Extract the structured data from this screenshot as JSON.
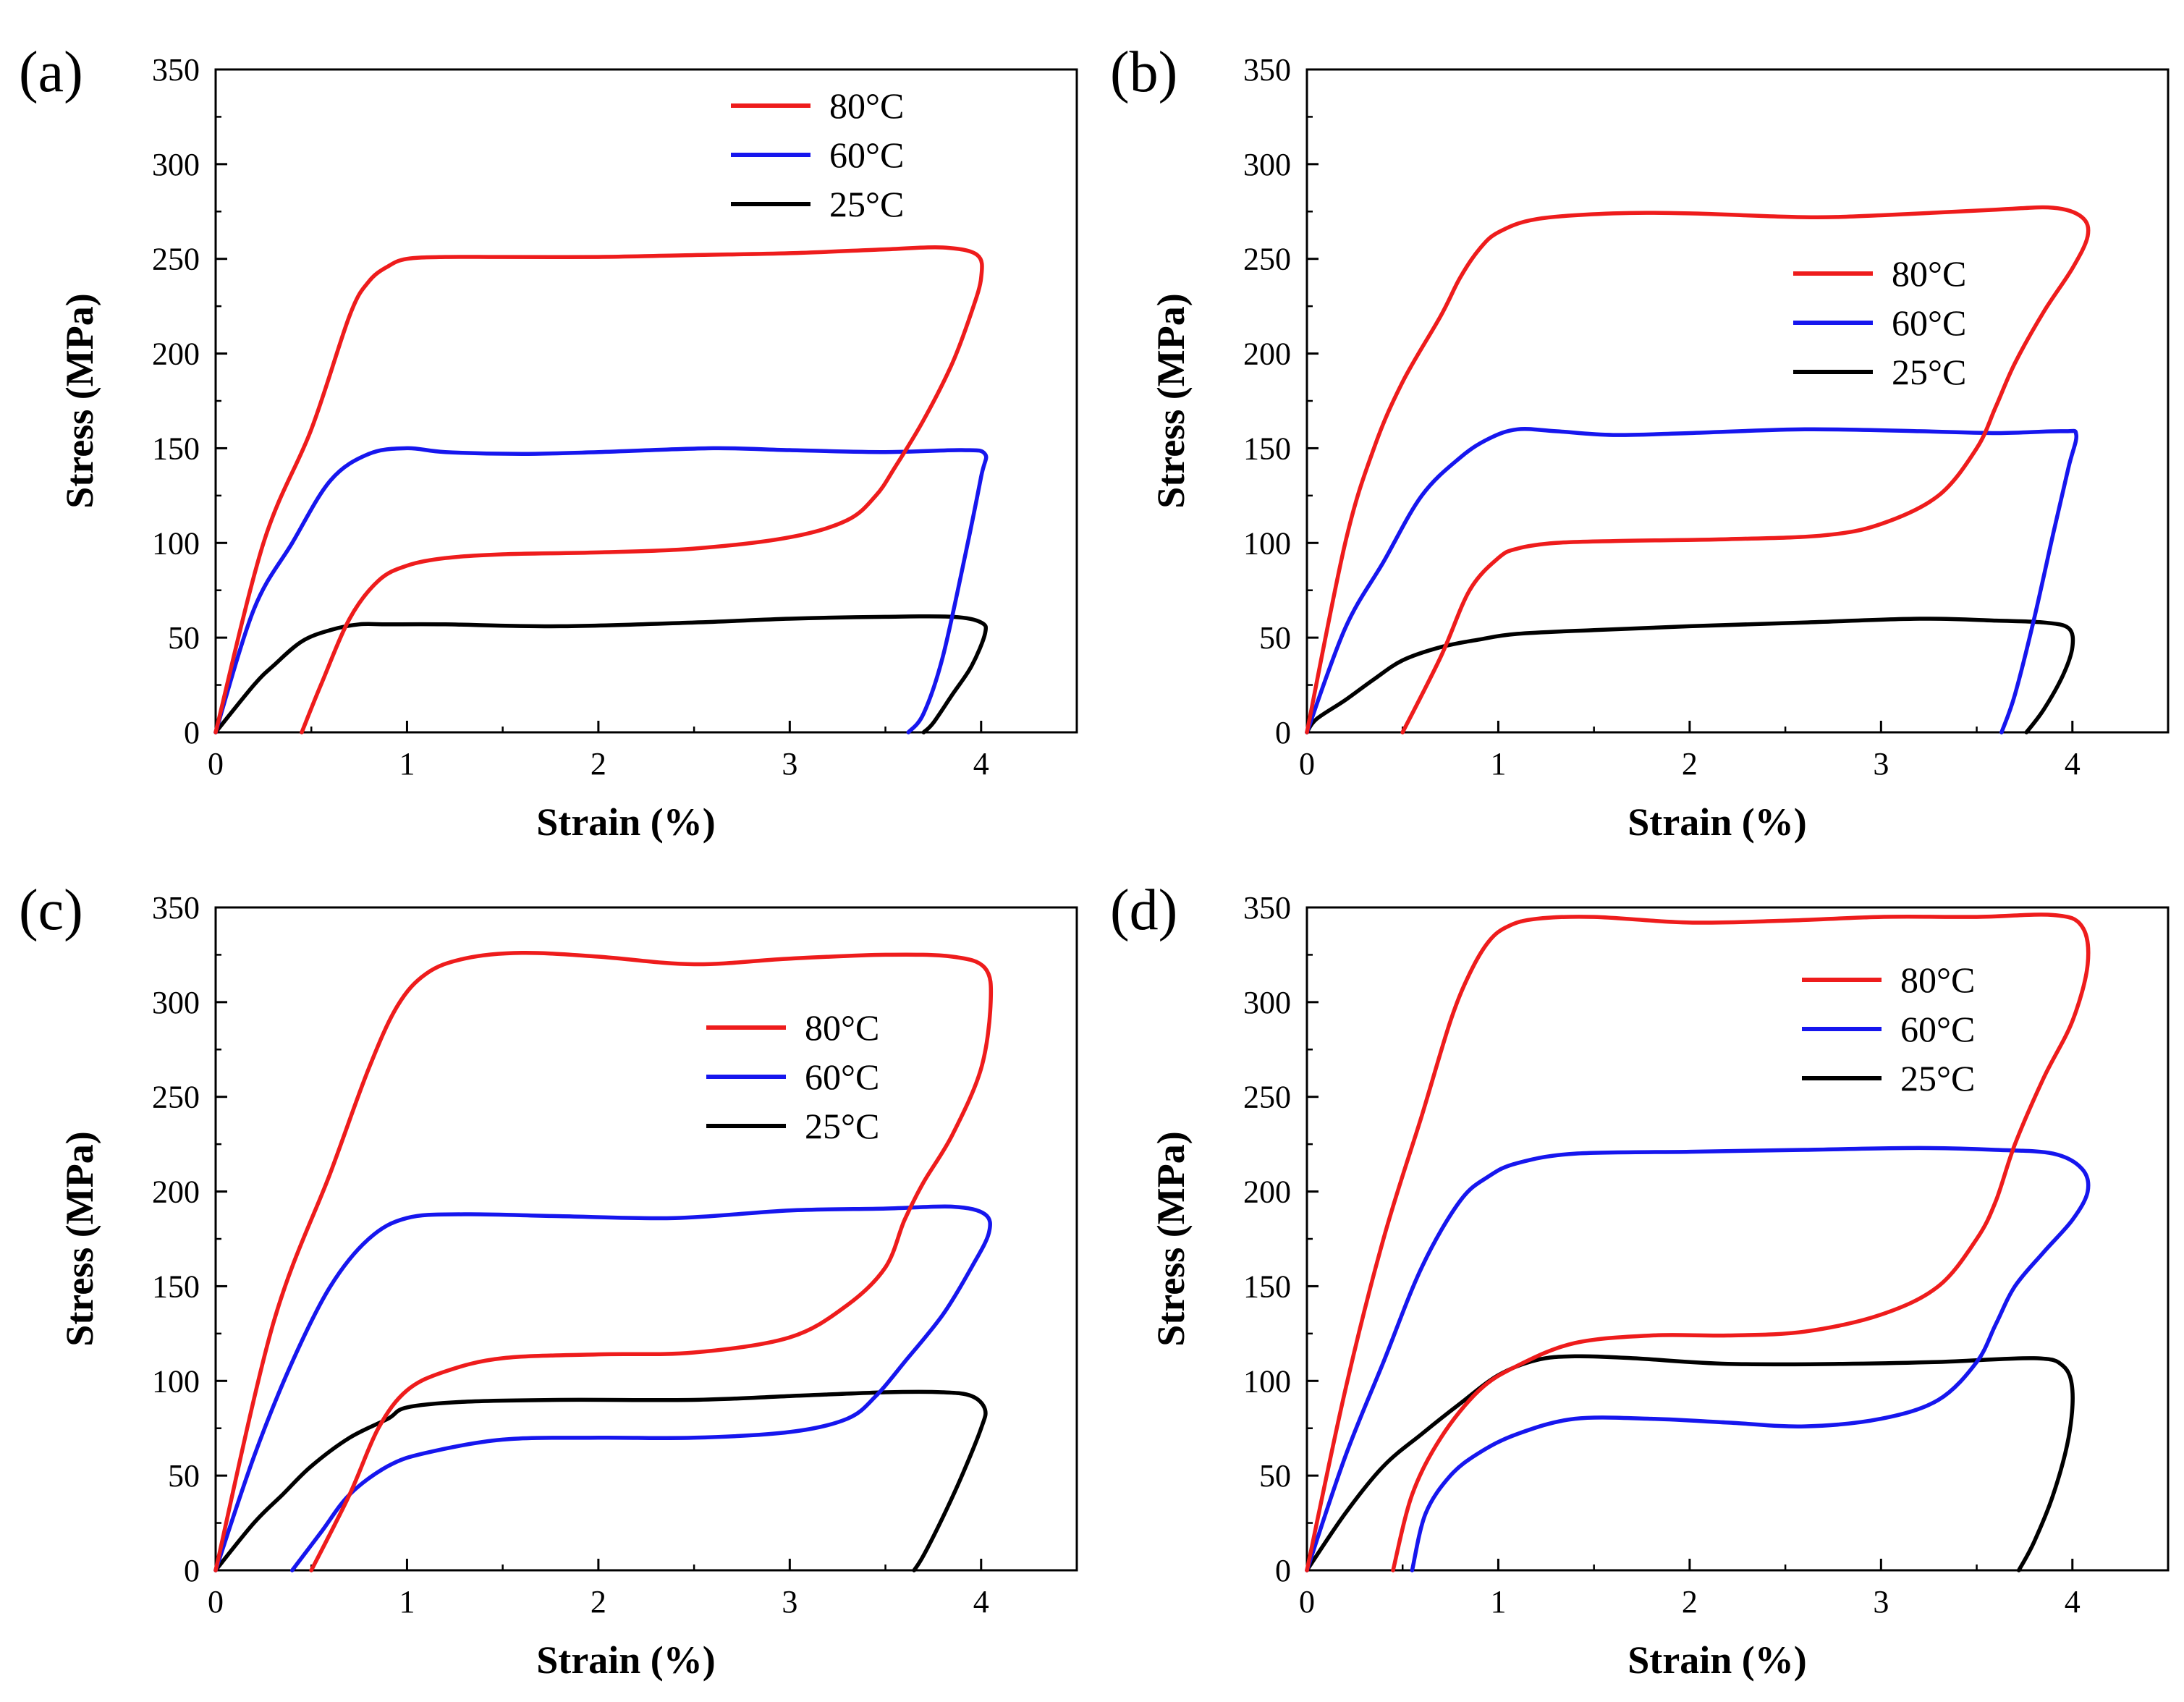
{
  "figure": {
    "colors": {
      "80C": "#ee1c1c",
      "60C": "#1616ee",
      "25C": "#000000"
    }
  },
  "chart_data": [
    {
      "panel": "(a)",
      "type": "line",
      "xlabel": "Strain (%)",
      "ylabel": "Stress (MPa)",
      "xlim": [
        0,
        4.5
      ],
      "ylim": [
        0,
        350
      ],
      "xticks": [
        "0",
        "1",
        "2",
        "3",
        "4"
      ],
      "yticks": [
        "0",
        "50",
        "100",
        "150",
        "200",
        "250",
        "300",
        "350"
      ],
      "legend_position": "top-right",
      "series": [
        {
          "name": "80°C",
          "color": "80C",
          "x": [
            0,
            0.25,
            0.5,
            0.7,
            0.8,
            0.9,
            1.0,
            1.2,
            1.5,
            2,
            2.5,
            3,
            3.5,
            3.8,
            3.98,
            4.0,
            3.95,
            3.85,
            3.7,
            3.55,
            3.45,
            3.3,
            3.0,
            2.5,
            2.0,
            1.5,
            1.2,
            1.0,
            0.85,
            0.7,
            0.55,
            0.45
          ],
          "y": [
            0,
            100,
            160,
            220,
            238,
            246,
            250,
            251,
            251,
            251,
            252,
            253,
            255,
            256,
            252,
            240,
            222,
            195,
            165,
            140,
            125,
            112,
            103,
            97,
            95,
            94,
            92,
            88,
            80,
            60,
            25,
            0
          ]
        },
        {
          "name": "60°C",
          "color": "60C",
          "x": [
            0,
            0.2,
            0.4,
            0.6,
            0.8,
            1.0,
            1.2,
            1.6,
            2.0,
            2.6,
            3.0,
            3.5,
            3.9,
            4.02,
            4.0,
            3.92,
            3.8,
            3.7,
            3.62
          ],
          "y": [
            0,
            65,
            100,
            133,
            147,
            150,
            148,
            147,
            148,
            150,
            149,
            148,
            149,
            147,
            135,
            95,
            40,
            10,
            0
          ]
        },
        {
          "name": "25°C",
          "color": "25C",
          "x": [
            0,
            0.2,
            0.3,
            0.45,
            0.6,
            0.75,
            0.9,
            1.2,
            1.8,
            2.5,
            3.0,
            3.5,
            3.85,
            4.0,
            4.02,
            3.95,
            3.85,
            3.75,
            3.7
          ],
          "y": [
            0,
            25,
            35,
            48,
            54,
            57,
            57,
            57,
            56,
            58,
            60,
            61,
            61,
            58,
            52,
            35,
            20,
            5,
            0
          ]
        }
      ]
    },
    {
      "panel": "(b)",
      "type": "line",
      "xlabel": "Strain (%)",
      "ylabel": "Stress (MPa)",
      "xlim": [
        0,
        4.5
      ],
      "ylim": [
        0,
        350
      ],
      "xticks": [
        "0",
        "1",
        "2",
        "3",
        "4"
      ],
      "yticks": [
        "0",
        "50",
        "100",
        "150",
        "200",
        "250",
        "300",
        "350"
      ],
      "legend_position": "upper-right",
      "series": [
        {
          "name": "80°C",
          "color": "80C",
          "x": [
            0,
            0.2,
            0.35,
            0.5,
            0.7,
            0.8,
            0.9,
            1.0,
            1.2,
            1.6,
            2.0,
            2.6,
            3.0,
            3.6,
            3.9,
            4.05,
            4.08,
            4.0,
            3.85,
            3.7,
            3.6,
            3.5,
            3.3,
            3.0,
            2.7,
            2.2,
            1.6,
            1.3,
            1.1,
            1.0,
            0.85,
            0.7,
            0.5
          ],
          "y": [
            0,
            100,
            150,
            185,
            220,
            240,
            255,
            264,
            271,
            274,
            274,
            272,
            273,
            276,
            277,
            272,
            262,
            245,
            222,
            195,
            172,
            150,
            125,
            110,
            104,
            102,
            101,
            100,
            97,
            92,
            75,
            40,
            0
          ]
        },
        {
          "name": "60°C",
          "color": "60C",
          "x": [
            0,
            0.2,
            0.4,
            0.6,
            0.8,
            0.95,
            1.1,
            1.3,
            1.6,
            2.0,
            2.6,
            3.2,
            3.6,
            3.95,
            4.02,
            3.98,
            3.9,
            3.8,
            3.7,
            3.63
          ],
          "y": [
            0,
            55,
            90,
            125,
            145,
            155,
            160,
            159,
            157,
            158,
            160,
            159,
            158,
            159,
            157,
            140,
            105,
            60,
            20,
            0
          ]
        },
        {
          "name": "25°C",
          "color": "25C",
          "x": [
            0,
            0.05,
            0.2,
            0.35,
            0.5,
            0.7,
            0.9,
            1.1,
            1.5,
            2.0,
            2.6,
            3.2,
            3.6,
            3.85,
            3.98,
            4.0,
            3.95,
            3.85,
            3.76
          ],
          "y": [
            0,
            7,
            17,
            28,
            38,
            45,
            49,
            52,
            54,
            56,
            58,
            60,
            59,
            58,
            55,
            45,
            30,
            12,
            0
          ]
        }
      ]
    },
    {
      "panel": "(c)",
      "type": "line",
      "xlabel": "Strain (%)",
      "ylabel": "Stress (MPa)",
      "xlim": [
        0,
        4.5
      ],
      "ylim": [
        0,
        350
      ],
      "xticks": [
        "0",
        "1",
        "2",
        "3",
        "4"
      ],
      "yticks": [
        "0",
        "50",
        "100",
        "150",
        "200",
        "250",
        "300",
        "350"
      ],
      "legend_position": "upper-right",
      "series": [
        {
          "name": "80°C",
          "color": "80C",
          "x": [
            0,
            0.3,
            0.6,
            0.8,
            0.95,
            1.1,
            1.3,
            1.6,
            2.0,
            2.5,
            3.0,
            3.5,
            3.85,
            4.02,
            4.05,
            4.0,
            3.85,
            3.7,
            3.6,
            3.5,
            3.3,
            3.0,
            2.5,
            2.0,
            1.5,
            1.2,
            1.0,
            0.85,
            0.7,
            0.5
          ],
          "y": [
            0,
            130,
            210,
            265,
            298,
            315,
            323,
            326,
            324,
            320,
            323,
            325,
            324,
            318,
            300,
            265,
            230,
            205,
            185,
            160,
            140,
            123,
            115,
            114,
            112,
            105,
            95,
            75,
            40,
            0
          ]
        },
        {
          "name": "60°C",
          "color": "60C",
          "x": [
            0,
            0.2,
            0.4,
            0.6,
            0.8,
            1.0,
            1.3,
            1.8,
            2.4,
            3.0,
            3.5,
            3.85,
            4.02,
            4.04,
            3.95,
            3.8,
            3.6,
            3.45,
            3.3,
            3.0,
            2.5,
            2.0,
            1.5,
            1.1,
            0.9,
            0.7,
            0.55,
            0.4
          ],
          "y": [
            0,
            60,
            110,
            150,
            175,
            186,
            188,
            187,
            186,
            190,
            191,
            192,
            188,
            178,
            160,
            135,
            110,
            92,
            80,
            73,
            70,
            70,
            69,
            62,
            55,
            40,
            20,
            0
          ]
        },
        {
          "name": "25°C",
          "color": "25C",
          "x": [
            0,
            0.2,
            0.35,
            0.5,
            0.7,
            0.9,
            1.0,
            1.3,
            1.8,
            2.5,
            3.0,
            3.5,
            3.8,
            3.95,
            4.02,
            4.0,
            3.9,
            3.8,
            3.7,
            3.65
          ],
          "y": [
            0,
            25,
            40,
            55,
            70,
            80,
            86,
            89,
            90,
            90,
            92,
            94,
            94,
            92,
            85,
            75,
            50,
            28,
            8,
            0
          ]
        }
      ]
    },
    {
      "panel": "(d)",
      "type": "line",
      "xlabel": "Strain (%)",
      "ylabel": "Stress (MPa)",
      "xlim": [
        0,
        4.5
      ],
      "ylim": [
        0,
        350
      ],
      "xticks": [
        "0",
        "1",
        "2",
        "3",
        "4"
      ],
      "yticks": [
        "0",
        "50",
        "100",
        "150",
        "200",
        "250",
        "300",
        "350"
      ],
      "legend_position": "upper-right",
      "series": [
        {
          "name": "80°C",
          "color": "80C",
          "x": [
            0,
            0.2,
            0.4,
            0.6,
            0.75,
            0.85,
            0.95,
            1.05,
            1.2,
            1.5,
            2.0,
            2.5,
            3.0,
            3.5,
            3.9,
            4.05,
            4.08,
            4.0,
            3.85,
            3.7,
            3.6,
            3.5,
            3.3,
            3.0,
            2.6,
            2.2,
            1.8,
            1.4,
            1.1,
            0.9,
            0.7,
            0.55,
            0.45
          ],
          "y": [
            0,
            95,
            175,
            240,
            290,
            315,
            332,
            340,
            344,
            345,
            342,
            343,
            345,
            345,
            346,
            340,
            320,
            290,
            260,
            225,
            195,
            175,
            150,
            135,
            126,
            124,
            124,
            120,
            108,
            95,
            70,
            40,
            0
          ]
        },
        {
          "name": "60°C",
          "color": "60C",
          "x": [
            0,
            0.2,
            0.4,
            0.6,
            0.8,
            0.95,
            1.1,
            1.4,
            2.0,
            2.6,
            3.2,
            3.6,
            3.9,
            4.05,
            4.08,
            4.0,
            3.85,
            3.7,
            3.6,
            3.5,
            3.3,
            3.0,
            2.6,
            2.2,
            1.8,
            1.4,
            1.1,
            0.9,
            0.75,
            0.62,
            0.55
          ],
          "y": [
            0,
            60,
            110,
            160,
            195,
            208,
            215,
            220,
            221,
            222,
            223,
            222,
            220,
            212,
            200,
            185,
            168,
            150,
            130,
            110,
            90,
            80,
            76,
            78,
            80,
            80,
            72,
            62,
            50,
            30,
            0
          ]
        },
        {
          "name": "25°C",
          "color": "25C",
          "x": [
            0,
            0.2,
            0.4,
            0.6,
            0.8,
            1.0,
            1.2,
            1.4,
            1.7,
            2.2,
            2.8,
            3.3,
            3.8,
            3.95,
            4.0,
            3.98,
            3.9,
            3.8,
            3.72
          ],
          "y": [
            0,
            30,
            55,
            72,
            88,
            103,
            111,
            113,
            112,
            109,
            109,
            110,
            112,
            108,
            95,
            70,
            40,
            15,
            0
          ]
        }
      ]
    }
  ]
}
